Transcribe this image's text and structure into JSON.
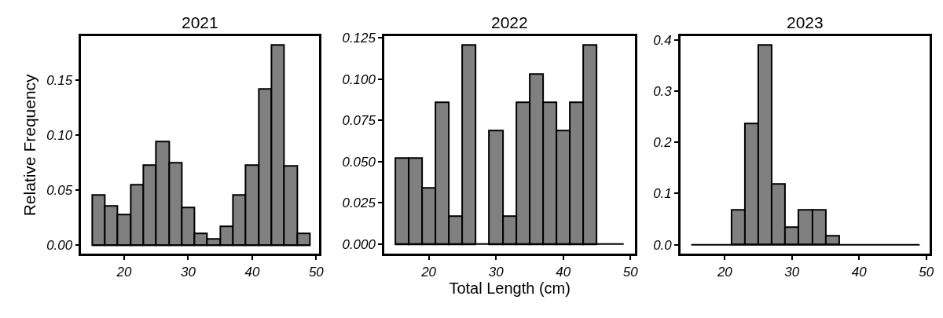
{
  "chart_data": [
    {
      "type": "histogram",
      "title": "2021",
      "ylabel": "Relative Frequency",
      "color": "#808080",
      "bins": [
        15,
        17,
        19,
        21,
        23,
        25,
        27,
        29,
        31,
        33,
        35,
        37,
        39,
        41,
        43,
        45,
        47,
        49
      ],
      "values": [
        0.046,
        0.036,
        0.028,
        0.055,
        0.073,
        0.094,
        0.075,
        0.034,
        0.011,
        0.006,
        0.017,
        0.046,
        0.073,
        0.142,
        0.182,
        0.072,
        0.011
      ],
      "xlim": [
        13.3,
        50.4
      ],
      "xticks": [
        20,
        30,
        40,
        50
      ],
      "ylim": [
        -0.008,
        0.19
      ],
      "yticks": [
        {
          "value": 0,
          "label": "0.00"
        },
        {
          "value": 0.05,
          "label": "0.05"
        },
        {
          "value": 0.1,
          "label": "0.10"
        },
        {
          "value": 0.15,
          "label": "0.15"
        }
      ]
    },
    {
      "type": "histogram",
      "title": "2022",
      "xlabel": "Total Length (cm)",
      "color": "#808080",
      "bins": [
        15,
        17,
        19,
        21,
        23,
        25,
        27,
        29,
        31,
        33,
        35,
        37,
        39,
        41,
        43,
        45,
        47,
        49
      ],
      "values": [
        0.052,
        0.052,
        0.034,
        0.086,
        0.017,
        0.121,
        0,
        0.069,
        0.017,
        0.086,
        0.103,
        0.086,
        0.069,
        0.086,
        0.121,
        0,
        0
      ],
      "xlim": [
        13.4,
        50.7
      ],
      "xticks": [
        20,
        30,
        40,
        50
      ],
      "ylim": [
        -0.006,
        0.126
      ],
      "yticks": [
        {
          "value": 0,
          "label": "0.000"
        },
        {
          "value": 0.025,
          "label": "0.025"
        },
        {
          "value": 0.05,
          "label": "0.050"
        },
        {
          "value": 0.075,
          "label": "0.075"
        },
        {
          "value": 0.1,
          "label": "0.100"
        },
        {
          "value": 0.125,
          "label": "0.125"
        }
      ]
    },
    {
      "type": "histogram",
      "title": "2023",
      "color": "#808080",
      "bins": [
        15,
        17,
        19,
        21,
        23,
        25,
        27,
        29,
        31,
        33,
        35,
        37,
        39,
        41,
        43,
        45,
        47,
        49
      ],
      "values": [
        0,
        0,
        0,
        0.068,
        0.237,
        0.39,
        0.119,
        0.034,
        0.068,
        0.068,
        0.017,
        0,
        0,
        0,
        0,
        0,
        0
      ],
      "xlim": [
        13.4,
        50.5
      ],
      "xticks": [
        20,
        30,
        40,
        50
      ],
      "ylim": [
        -0.018,
        0.407
      ],
      "yticks": [
        {
          "value": 0,
          "label": "0.0"
        },
        {
          "value": 0.1,
          "label": "0.1"
        },
        {
          "value": 0.2,
          "label": "0.2"
        },
        {
          "value": 0.3,
          "label": "0.3"
        },
        {
          "value": 0.4,
          "label": "0.4"
        }
      ]
    }
  ]
}
